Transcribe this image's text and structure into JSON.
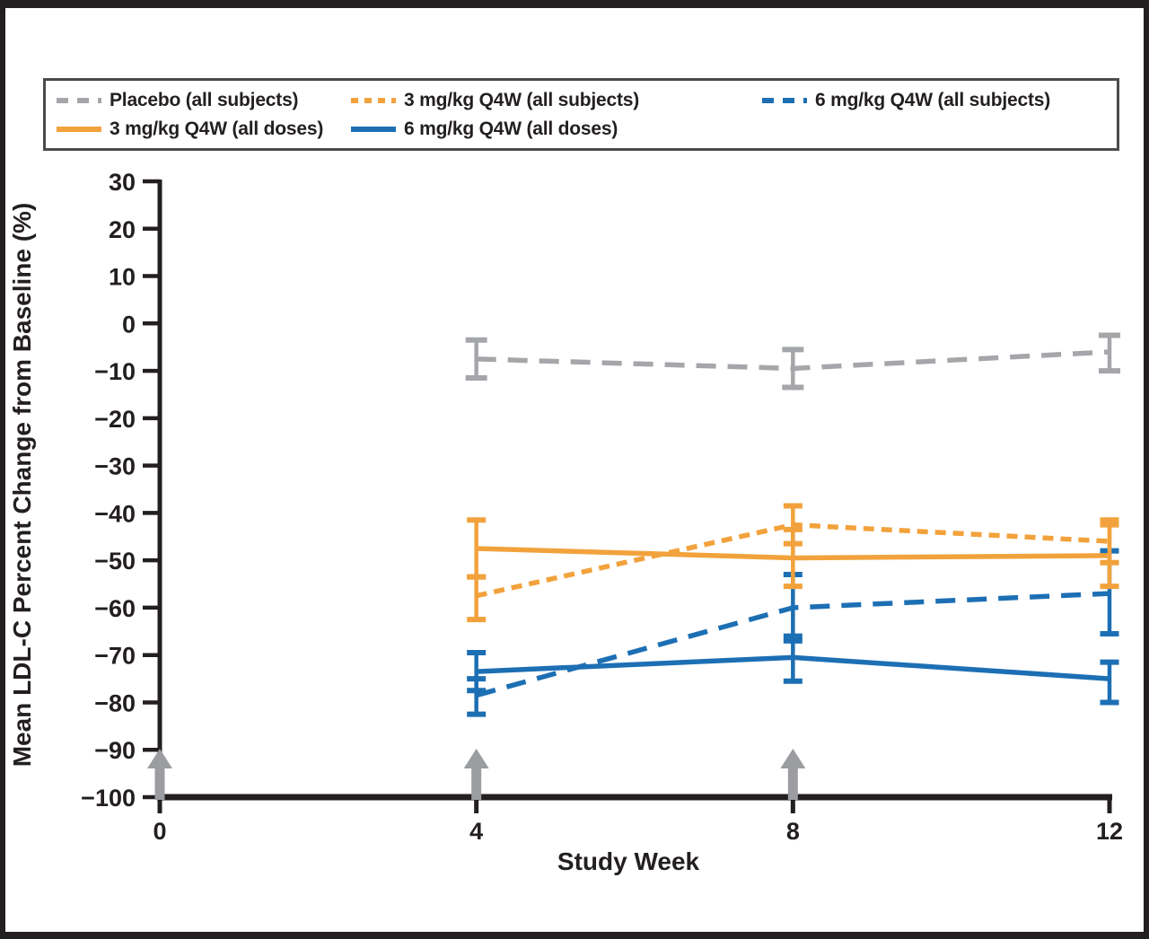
{
  "chart_data": {
    "type": "line",
    "title": "",
    "xlabel": "Study Week",
    "ylabel": "Mean LDL-C Percent Change from Baseline (%)",
    "x": [
      4,
      8,
      12
    ],
    "xlim": [
      0,
      12
    ],
    "ylim": [
      -100,
      30
    ],
    "x_ticks": [
      0,
      4,
      8,
      12
    ],
    "y_ticks": [
      30,
      20,
      10,
      0,
      -10,
      -20,
      -30,
      -40,
      -50,
      -60,
      -70,
      -80,
      -90,
      -100
    ],
    "grid": false,
    "legend_position": "top",
    "dose_arrow_weeks": [
      0,
      4,
      8
    ],
    "colors": {
      "placebo_gray": "#a4a6a9",
      "orange": "#f2a23c",
      "blue": "#1d6fb4",
      "arrow_gray": "#9b9da0",
      "axis_black": "#231f20"
    },
    "series": [
      {
        "name": "Placebo (all subjects)",
        "color": "#a4a6a9",
        "style": "dashed",
        "values": [
          -7.5,
          -9.5,
          -6
        ],
        "err_hi": [
          -3.5,
          -5.5,
          -2.5
        ],
        "err_lo": [
          -11.5,
          -13.5,
          -10
        ]
      },
      {
        "name": "3 mg/kg Q4W (all subjects)",
        "color": "#f2a23c",
        "style": "dotted",
        "values": [
          -57.5,
          -42.5,
          -46
        ],
        "err_hi": [
          -53.5,
          -38.5,
          -41.5
        ],
        "err_lo": [
          -62.5,
          -46.5,
          -50.5
        ]
      },
      {
        "name": "6 mg/kg Q4W (all subjects)",
        "color": "#1d6fb4",
        "style": "dashed",
        "values": [
          -78.5,
          -60,
          -57
        ],
        "err_hi": [
          -75,
          -53,
          -48
        ],
        "err_lo": [
          -82.5,
          -67,
          -65.5
        ]
      },
      {
        "name": "3 mg/kg Q4W (all doses)",
        "color": "#f2a23c",
        "style": "solid",
        "values": [
          -47.5,
          -49.5,
          -49
        ],
        "err_hi": [
          -41.5,
          -43.5,
          -42.5
        ],
        "err_lo": [
          -53.5,
          -55.5,
          -55.5
        ]
      },
      {
        "name": "6 mg/kg Q4W (all doses)",
        "color": "#1d6fb4",
        "style": "solid",
        "values": [
          -73.5,
          -70.5,
          -75
        ],
        "err_hi": [
          -69.5,
          -66,
          -71.5
        ],
        "err_lo": [
          -77.5,
          -75.5,
          -80
        ]
      }
    ]
  }
}
